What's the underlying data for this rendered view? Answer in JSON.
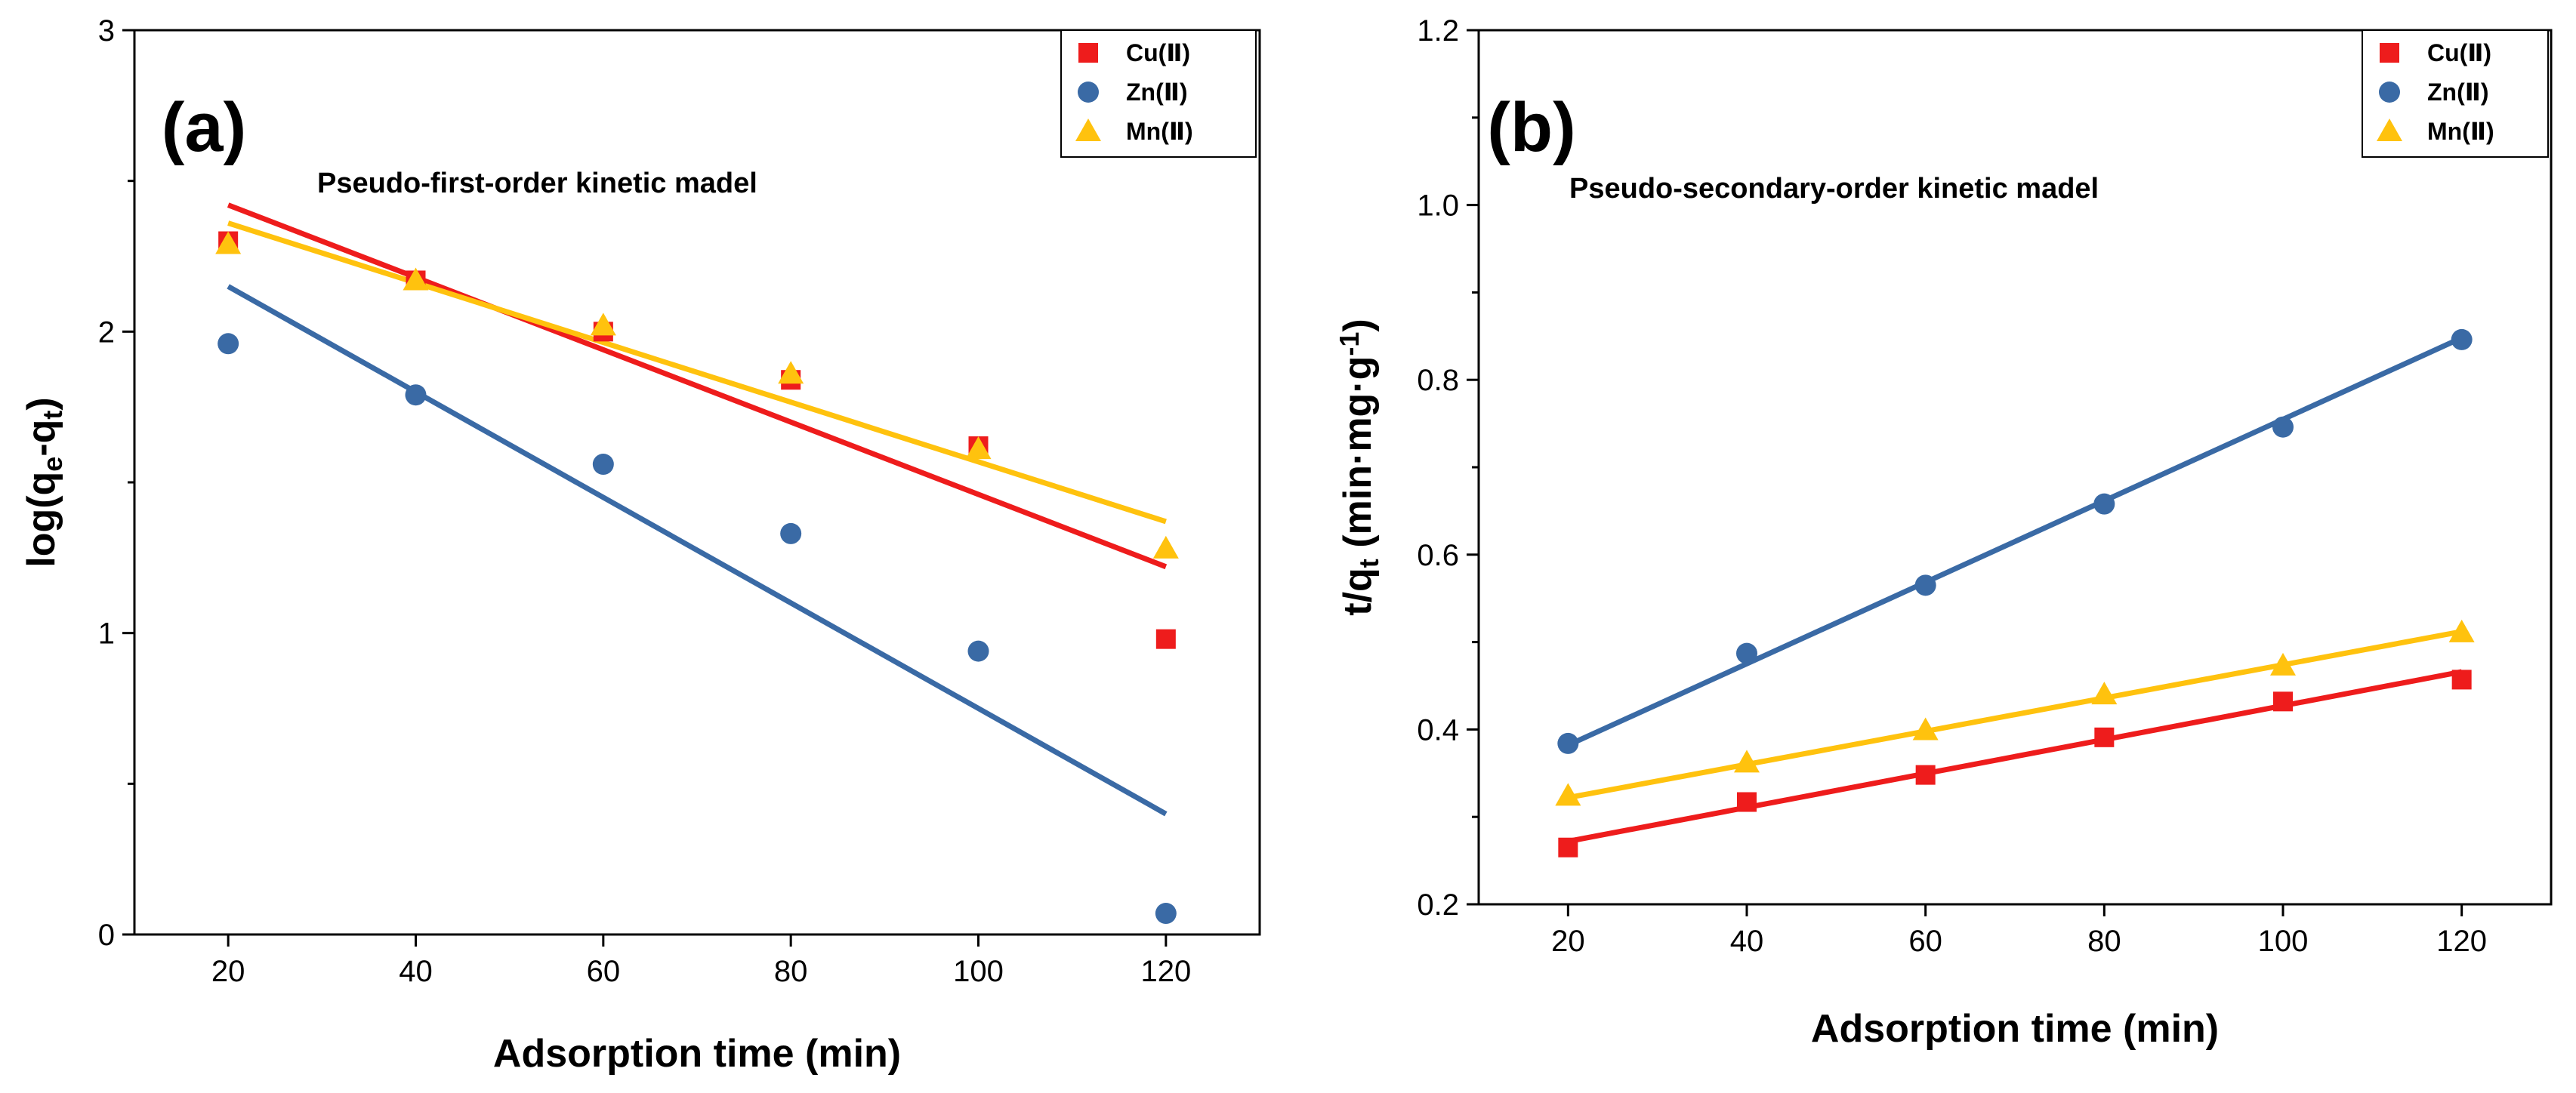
{
  "chart_data": [
    {
      "type": "scatter",
      "panel_label": "(a)",
      "title": "Pseudo-first-order kinetic madel",
      "xlabel": "Adsorption time (min)",
      "ylabel": {
        "base": "log(q",
        "sub1": "e",
        "mid": "-q",
        "sub2": "t",
        "end": ")"
      },
      "xlim": [
        10,
        130
      ],
      "ylim": [
        0,
        3
      ],
      "xticks": [
        20,
        40,
        60,
        80,
        100,
        120
      ],
      "yticks": [
        0,
        1,
        2,
        3
      ],
      "x": [
        20,
        40,
        60,
        80,
        100,
        120
      ],
      "legend_position": "top-right",
      "series": [
        {
          "name": "Cu(Ⅱ)",
          "color": "#ee1c1c",
          "marker": "square",
          "values": [
            2.3,
            2.17,
            2.0,
            1.84,
            1.62,
            0.98
          ],
          "fit": [
            2.42,
            1.22
          ]
        },
        {
          "name": "Zn(Ⅱ)",
          "color": "#3a6aa5",
          "marker": "circle",
          "values": [
            1.96,
            1.79,
            1.56,
            1.33,
            0.94,
            0.07
          ],
          "fit": [
            2.15,
            0.4
          ]
        },
        {
          "name": "Mn(Ⅱ)",
          "color": "#ffc20e",
          "marker": "triangle",
          "values": [
            2.29,
            2.17,
            2.02,
            1.86,
            1.61,
            1.28
          ],
          "fit": [
            2.36,
            1.37
          ]
        }
      ]
    },
    {
      "type": "scatter",
      "panel_label": "(b)",
      "title": "Pseudo-secondary-order kinetic madel",
      "xlabel": "Adsorption time (min)",
      "ylabel": {
        "base": "t/q",
        "sub1": "t",
        "mid": " (min·mg·g",
        "sup": "-1",
        "end": ")"
      },
      "xlim": [
        10,
        130
      ],
      "ylim": [
        0.2,
        1.2
      ],
      "xticks": [
        20,
        40,
        60,
        80,
        100,
        120
      ],
      "yticks": [
        0.2,
        0.4,
        0.6,
        0.8,
        1.0,
        1.2
      ],
      "x": [
        20,
        40,
        60,
        80,
        100,
        120
      ],
      "legend_position": "top-right",
      "series": [
        {
          "name": "Cu(Ⅱ)",
          "color": "#ee1c1c",
          "marker": "square",
          "values": [
            0.265,
            0.317,
            0.348,
            0.391,
            0.432,
            0.457
          ],
          "fit": [
            0.272,
            0.466
          ]
        },
        {
          "name": "Zn(Ⅱ)",
          "color": "#3a6aa5",
          "marker": "circle",
          "values": [
            0.384,
            0.487,
            0.565,
            0.658,
            0.746,
            0.846
          ],
          "fit": [
            0.382,
            0.848
          ]
        },
        {
          "name": "Mn(Ⅱ)",
          "color": "#ffc20e",
          "marker": "triangle",
          "values": [
            0.324,
            0.362,
            0.399,
            0.44,
            0.473,
            0.511
          ],
          "fit": [
            0.322,
            0.512
          ]
        }
      ]
    }
  ]
}
